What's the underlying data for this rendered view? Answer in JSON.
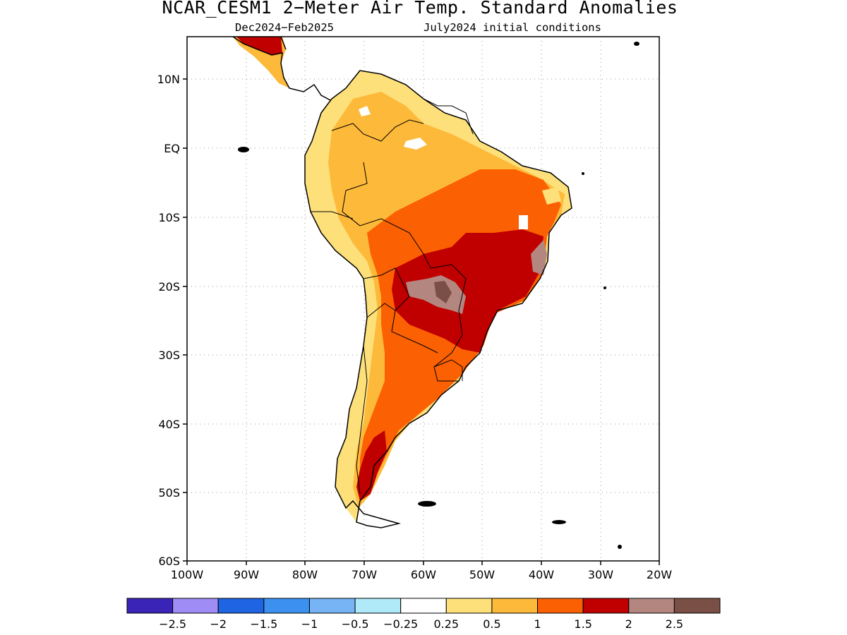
{
  "title": "NCAR_CESM1 2−Meter Air Temp. Standard Anomalies",
  "subtitle_left": "Dec2024−Feb2025",
  "subtitle_right": "July2024 initial conditions",
  "lat_labels": [
    "10N",
    "EQ",
    "10S",
    "20S",
    "30S",
    "40S",
    "50S",
    "60S"
  ],
  "lon_labels": [
    "100W",
    "90W",
    "80W",
    "70W",
    "60W",
    "50W",
    "40W",
    "30W",
    "20W"
  ],
  "colorbar": {
    "labels": [
      "−2.5",
      "−2",
      "−1.5",
      "−1",
      "−0.5",
      "−0.25",
      "0.25",
      "0.5",
      "1",
      "1.5",
      "2",
      "2.5"
    ],
    "colors": [
      "#3a24b8",
      "#9f8cf5",
      "#1f64e2",
      "#3c90f0",
      "#76b4f5",
      "#b0eaf8",
      "#ffffff",
      "#fee07a",
      "#fdb93a",
      "#fb6002",
      "#c00000",
      "#b48680",
      "#7a4f45"
    ]
  },
  "legend_colors": {
    "white": "#ffffff",
    "light_yellow": "#fee07a",
    "yellow_orange": "#fdb93a",
    "orange": "#fb6002",
    "red": "#c00000",
    "light_brown": "#b48680",
    "dark_brown": "#7a4f45"
  }
}
